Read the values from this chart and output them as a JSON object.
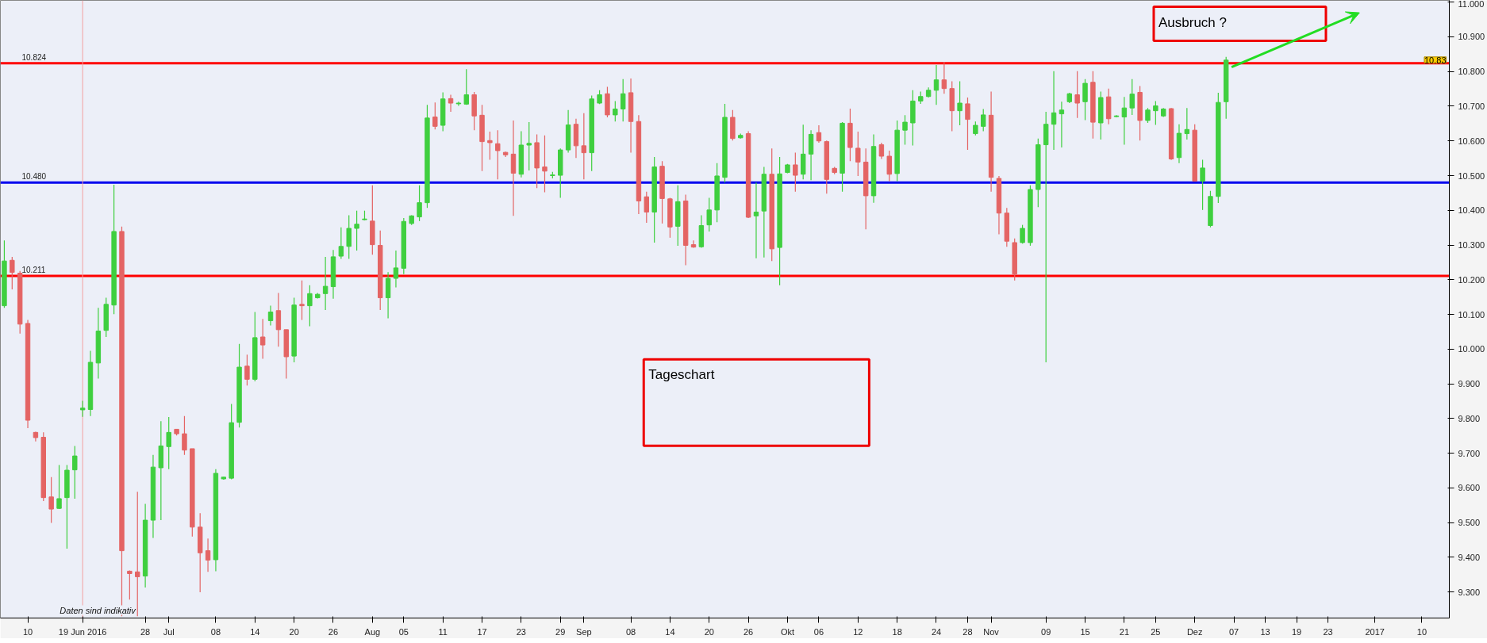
{
  "chart_data": {
    "type": "candlestick",
    "categories": [
      null,
      null,
      null,
      "10",
      null,
      null,
      null,
      null,
      null,
      null,
      "19 Jun 2016",
      null,
      null,
      null,
      null,
      null,
      null,
      null,
      "28",
      null,
      null,
      "Jul",
      null,
      null,
      null,
      null,
      null,
      "08",
      null,
      null,
      null,
      null,
      "14",
      null,
      null,
      null,
      null,
      "20",
      null,
      null,
      null,
      null,
      "26",
      null,
      null,
      null,
      null,
      "Aug",
      null,
      null,
      null,
      "05",
      null,
      null,
      null,
      null,
      "11",
      null,
      null,
      null,
      null,
      "17",
      null,
      null,
      null,
      null,
      "23",
      null,
      null,
      null,
      null,
      "29",
      null,
      null,
      "Sep",
      null,
      null,
      null,
      null,
      null,
      "08",
      null,
      null,
      null,
      null,
      "14",
      null,
      null,
      null,
      null,
      "20",
      null,
      null,
      null,
      null,
      "26",
      null,
      null,
      null,
      null,
      "Okt",
      null,
      null,
      null,
      "06",
      null,
      null,
      null,
      null,
      "12",
      null,
      null,
      null,
      null,
      "18",
      null,
      null,
      null,
      null,
      "24",
      null,
      null,
      null,
      "28",
      null,
      null,
      "Nov",
      null,
      null,
      null,
      null,
      null,
      null,
      "09",
      null,
      null,
      null,
      null,
      "15",
      null,
      null,
      null,
      null,
      "21",
      null,
      null,
      null,
      "25",
      null,
      null,
      null,
      null,
      "Dez",
      null,
      null,
      null,
      null,
      "07",
      null,
      null,
      null,
      "13",
      null,
      null,
      null,
      "19",
      null,
      null,
      null,
      "23",
      null,
      null,
      null,
      null,
      null,
      "2017",
      null,
      null,
      null,
      null,
      null,
      "10",
      null,
      null,
      null
    ],
    "ohlc": [
      [
        10.125,
        10.313,
        10.119,
        10.254
      ],
      [
        10.256,
        10.266,
        10.172,
        10.221
      ],
      [
        10.219,
        10.225,
        10.045,
        10.072
      ],
      [
        10.074,
        10.084,
        9.772,
        9.795
      ],
      [
        9.76,
        9.762,
        9.734,
        9.745
      ],
      [
        9.746,
        9.76,
        9.562,
        9.572
      ],
      [
        9.574,
        9.631,
        9.499,
        9.539
      ],
      [
        9.541,
        9.666,
        9.539,
        9.569
      ],
      [
        9.572,
        9.666,
        9.425,
        9.651
      ],
      [
        9.652,
        9.721,
        9.569,
        9.692
      ],
      [
        9.825,
        9.851,
        9.805,
        9.83
      ],
      [
        9.826,
        9.995,
        9.807,
        9.962
      ],
      [
        9.96,
        10.119,
        9.915,
        10.052
      ],
      [
        10.054,
        10.148,
        10.035,
        10.129
      ],
      [
        10.127,
        10.474,
        10.101,
        10.339
      ],
      [
        10.339,
        10.353,
        9.23,
        9.419
      ],
      [
        9.36,
        9.362,
        9.278,
        9.353
      ],
      [
        9.358,
        9.589,
        9.23,
        9.344
      ],
      [
        9.346,
        9.554,
        9.313,
        9.507
      ],
      [
        9.507,
        9.695,
        9.456,
        9.66
      ],
      [
        9.658,
        9.792,
        9.507,
        9.721
      ],
      [
        9.719,
        9.804,
        9.654,
        9.76
      ],
      [
        9.769,
        9.769,
        9.751,
        9.756
      ],
      [
        9.756,
        9.807,
        9.695,
        9.709
      ],
      [
        9.713,
        9.713,
        9.46,
        9.487
      ],
      [
        9.487,
        9.527,
        9.299,
        9.413
      ],
      [
        9.419,
        9.454,
        9.358,
        9.392
      ],
      [
        9.393,
        9.654,
        9.36,
        9.642
      ],
      [
        9.626,
        9.632,
        9.624,
        9.631
      ],
      [
        9.628,
        9.842,
        9.625,
        9.788
      ],
      [
        9.789,
        10.015,
        9.774,
        9.948
      ],
      [
        9.951,
        9.984,
        9.895,
        9.913
      ],
      [
        9.913,
        10.107,
        9.907,
        10.033
      ],
      [
        10.035,
        10.087,
        9.972,
        10.012
      ],
      [
        10.082,
        10.125,
        10.068,
        10.107
      ],
      [
        10.111,
        10.162,
        10.007,
        10.056
      ],
      [
        10.056,
        10.056,
        9.915,
        9.978
      ],
      [
        9.98,
        10.148,
        9.962,
        10.127
      ],
      [
        10.129,
        10.198,
        10.084,
        10.125
      ],
      [
        10.125,
        10.184,
        10.066,
        10.16
      ],
      [
        10.148,
        10.162,
        10.146,
        10.158
      ],
      [
        10.16,
        10.266,
        10.113,
        10.181
      ],
      [
        10.18,
        10.286,
        10.145,
        10.266
      ],
      [
        10.268,
        10.351,
        10.26,
        10.296
      ],
      [
        10.296,
        10.386,
        10.26,
        10.348
      ],
      [
        10.348,
        10.399,
        10.284,
        10.36
      ],
      [
        10.373,
        10.399,
        10.371,
        10.375
      ],
      [
        10.369,
        10.472,
        10.272,
        10.301
      ],
      [
        10.299,
        10.342,
        10.113,
        10.148
      ],
      [
        10.148,
        10.222,
        10.089,
        10.204
      ],
      [
        10.204,
        10.284,
        10.178,
        10.234
      ],
      [
        10.233,
        10.378,
        10.216,
        10.368
      ],
      [
        10.362,
        10.386,
        10.358,
        10.384
      ],
      [
        10.381,
        10.472,
        10.369,
        10.422
      ],
      [
        10.422,
        10.704,
        10.407,
        10.666
      ],
      [
        10.669,
        10.711,
        10.633,
        10.642
      ],
      [
        10.645,
        10.74,
        10.628,
        10.721
      ],
      [
        10.722,
        10.733,
        10.684,
        10.709
      ],
      [
        10.707,
        10.713,
        10.701,
        10.709
      ],
      [
        10.706,
        10.807,
        10.704,
        10.733
      ],
      [
        10.733,
        10.741,
        10.631,
        10.672
      ],
      [
        10.674,
        10.704,
        10.513,
        10.598
      ],
      [
        10.601,
        10.627,
        10.546,
        10.595
      ],
      [
        10.592,
        10.631,
        10.489,
        10.572
      ],
      [
        10.567,
        10.569,
        10.554,
        10.56
      ],
      [
        10.562,
        10.659,
        10.384,
        10.507
      ],
      [
        10.504,
        10.628,
        10.495,
        10.588
      ],
      [
        10.588,
        10.654,
        10.515,
        10.593
      ],
      [
        10.595,
        10.619,
        10.464,
        10.522
      ],
      [
        10.525,
        10.616,
        10.452,
        10.513
      ],
      [
        10.5,
        10.511,
        10.492,
        10.502
      ],
      [
        10.501,
        10.578,
        10.436,
        10.574
      ],
      [
        10.574,
        10.689,
        10.566,
        10.646
      ],
      [
        10.648,
        10.664,
        10.551,
        10.586
      ],
      [
        10.586,
        10.68,
        10.489,
        10.566
      ],
      [
        10.566,
        10.731,
        10.513,
        10.721
      ],
      [
        10.709,
        10.746,
        10.706,
        10.733
      ],
      [
        10.736,
        10.756,
        10.668,
        10.675
      ],
      [
        10.675,
        10.715,
        10.656,
        10.692
      ],
      [
        10.692,
        10.778,
        10.656,
        10.736
      ],
      [
        10.739,
        10.78,
        10.566,
        10.656
      ],
      [
        10.656,
        10.674,
        10.389,
        10.427
      ],
      [
        10.439,
        10.454,
        10.364,
        10.395
      ],
      [
        10.395,
        10.554,
        10.307,
        10.525
      ],
      [
        10.527,
        10.542,
        10.362,
        10.434
      ],
      [
        10.433,
        10.436,
        10.321,
        10.352
      ],
      [
        10.354,
        10.472,
        10.298,
        10.425
      ],
      [
        10.427,
        10.445,
        10.242,
        10.299
      ],
      [
        10.301,
        10.313,
        10.292,
        10.294
      ],
      [
        10.295,
        10.386,
        10.292,
        10.356
      ],
      [
        10.358,
        10.436,
        10.339,
        10.401
      ],
      [
        10.401,
        10.536,
        10.366,
        10.499
      ],
      [
        10.495,
        10.707,
        10.48,
        10.668
      ],
      [
        10.668,
        10.689,
        10.601,
        10.607
      ],
      [
        10.609,
        10.621,
        10.607,
        10.616
      ],
      [
        10.621,
        10.628,
        10.378,
        10.38
      ],
      [
        10.384,
        10.48,
        10.262,
        10.395
      ],
      [
        10.398,
        10.525,
        10.264,
        10.504
      ],
      [
        10.504,
        10.578,
        10.254,
        10.289
      ],
      [
        10.293,
        10.554,
        10.184,
        10.505
      ],
      [
        10.509,
        10.534,
        10.507,
        10.531
      ],
      [
        10.531,
        10.566,
        10.454,
        10.501
      ],
      [
        10.504,
        10.647,
        10.489,
        10.562
      ],
      [
        10.562,
        10.631,
        10.487,
        10.619
      ],
      [
        10.624,
        10.645,
        10.595,
        10.6
      ],
      [
        10.598,
        10.601,
        10.448,
        10.489
      ],
      [
        10.521,
        10.525,
        10.504,
        10.509
      ],
      [
        10.507,
        10.654,
        10.454,
        10.651
      ],
      [
        10.651,
        10.693,
        10.542,
        10.581
      ],
      [
        10.579,
        10.627,
        10.499,
        10.539
      ],
      [
        10.539,
        10.578,
        10.345,
        10.442
      ],
      [
        10.442,
        10.619,
        10.422,
        10.584
      ],
      [
        10.589,
        10.595,
        10.548,
        10.556
      ],
      [
        10.556,
        10.572,
        10.484,
        10.504
      ],
      [
        10.506,
        10.659,
        10.484,
        10.631
      ],
      [
        10.631,
        10.674,
        10.589,
        10.654
      ],
      [
        10.652,
        10.746,
        10.587,
        10.715
      ],
      [
        10.715,
        10.742,
        10.707,
        10.728
      ],
      [
        10.728,
        10.754,
        10.725,
        10.746
      ],
      [
        10.746,
        10.819,
        10.704,
        10.776
      ],
      [
        10.776,
        10.828,
        10.736,
        10.751
      ],
      [
        10.751,
        10.772,
        10.628,
        10.687
      ],
      [
        10.687,
        10.772,
        10.645,
        10.709
      ],
      [
        10.707,
        10.725,
        10.574,
        10.662
      ],
      [
        10.621,
        10.656,
        10.616,
        10.645
      ],
      [
        10.642,
        10.692,
        10.628,
        10.675
      ],
      [
        10.674,
        10.742,
        10.454,
        10.495
      ],
      [
        10.492,
        10.499,
        10.331,
        10.392
      ],
      [
        10.392,
        10.407,
        10.295,
        10.311
      ],
      [
        10.307,
        10.319,
        10.198,
        10.216
      ],
      [
        10.307,
        10.358,
        10.304,
        10.348
      ],
      [
        10.307,
        10.472,
        10.298,
        10.46
      ],
      [
        10.46,
        10.607,
        10.409,
        10.589
      ],
      [
        10.589,
        10.684,
        9.962,
        10.648
      ],
      [
        10.648,
        10.801,
        10.574,
        10.681
      ],
      [
        10.678,
        10.713,
        10.581,
        10.689
      ],
      [
        10.713,
        10.739,
        10.709,
        10.736
      ],
      [
        10.733,
        10.801,
        10.666,
        10.709
      ],
      [
        10.713,
        10.778,
        10.66,
        10.766
      ],
      [
        10.769,
        10.801,
        10.607,
        10.654
      ],
      [
        10.652,
        10.742,
        10.604,
        10.725
      ],
      [
        10.727,
        10.751,
        10.648,
        10.664
      ],
      [
        10.67,
        10.674,
        10.668,
        10.672
      ],
      [
        10.669,
        10.727,
        10.589,
        10.695
      ],
      [
        10.695,
        10.778,
        10.675,
        10.735
      ],
      [
        10.74,
        10.758,
        10.601,
        10.659
      ],
      [
        10.659,
        10.695,
        10.652,
        10.689
      ],
      [
        10.687,
        10.715,
        10.646,
        10.701
      ],
      [
        10.672,
        10.695,
        10.669,
        10.692
      ],
      [
        10.693,
        10.695,
        10.545,
        10.548
      ],
      [
        10.552,
        10.648,
        10.536,
        10.622
      ],
      [
        10.621,
        10.695,
        10.604,
        10.633
      ],
      [
        10.631,
        10.648,
        10.484,
        10.484
      ],
      [
        10.484,
        10.546,
        10.401,
        10.522
      ],
      [
        10.356,
        10.456,
        10.351,
        10.44
      ],
      [
        10.44,
        10.739,
        10.421,
        10.711
      ],
      [
        10.713,
        10.842,
        10.664,
        10.833
      ],
      null,
      null,
      null,
      null,
      null,
      null,
      null,
      null,
      null,
      null,
      null,
      null,
      null,
      null,
      null,
      null,
      null,
      null,
      null,
      null,
      null,
      null,
      null,
      null,
      null,
      null,
      null,
      null
    ],
    "colors": [
      "#3fcf3f",
      "#e46464",
      "#e46464",
      "#e46464",
      "#e46464",
      "#e46464",
      "#e46464",
      "#3fcf3f",
      "#3fcf3f",
      "#3fcf3f",
      "#3fcf3f",
      "#3fcf3f",
      "#3fcf3f",
      "#3fcf3f",
      "#3fcf3f",
      "#e46464",
      "#e46464",
      "#e46464",
      "#3fcf3f",
      "#3fcf3f",
      "#3fcf3f",
      "#3fcf3f",
      "#e46464",
      "#e46464",
      "#e46464",
      "#e46464",
      "#e46464",
      "#3fcf3f",
      "#3fcf3f",
      "#3fcf3f",
      "#3fcf3f",
      "#e46464",
      "#3fcf3f",
      "#e46464",
      "#3fcf3f",
      "#e46464",
      "#e46464",
      "#3fcf3f",
      "#e46464",
      "#3fcf3f",
      "#3fcf3f",
      "#3fcf3f",
      "#3fcf3f",
      "#3fcf3f",
      "#3fcf3f",
      "#3fcf3f",
      "#3fcf3f",
      "#e46464",
      "#e46464",
      "#3fcf3f",
      "#3fcf3f",
      "#3fcf3f",
      "#3fcf3f",
      "#3fcf3f",
      "#3fcf3f",
      "#e46464",
      "#3fcf3f",
      "#e46464",
      "#3fcf3f",
      "#3fcf3f",
      "#e46464",
      "#e46464",
      "#e46464",
      "#e46464",
      "#e46464",
      "#e46464",
      "#3fcf3f",
      "#3fcf3f",
      "#e46464",
      "#e46464",
      "#3fcf3f",
      "#3fcf3f",
      "#3fcf3f",
      "#e46464",
      "#e46464",
      "#3fcf3f",
      "#3fcf3f",
      "#e46464",
      "#3fcf3f",
      "#3fcf3f",
      "#e46464",
      "#e46464",
      "#e46464",
      "#3fcf3f",
      "#e46464",
      "#e46464",
      "#3fcf3f",
      "#e46464",
      "#e46464",
      "#3fcf3f",
      "#3fcf3f",
      "#3fcf3f",
      "#3fcf3f",
      "#e46464",
      "#3fcf3f",
      "#e46464",
      "#3fcf3f",
      "#3fcf3f",
      "#e46464",
      "#3fcf3f",
      "#3fcf3f",
      "#e46464",
      "#3fcf3f",
      "#3fcf3f",
      "#e46464",
      "#e46464",
      "#e46464",
      "#3fcf3f",
      "#e46464",
      "#e46464",
      "#e46464",
      "#3fcf3f",
      "#e46464",
      "#e46464",
      "#3fcf3f",
      "#3fcf3f",
      "#3fcf3f",
      "#3fcf3f",
      "#3fcf3f",
      "#3fcf3f",
      "#e46464",
      "#e46464",
      "#3fcf3f",
      "#e46464",
      "#3fcf3f",
      "#3fcf3f",
      "#e46464",
      "#e46464",
      "#e46464",
      "#e46464",
      "#3fcf3f",
      "#3fcf3f",
      "#3fcf3f",
      "#3fcf3f",
      "#3fcf3f",
      "#3fcf3f",
      "#3fcf3f",
      "#e46464",
      "#3fcf3f",
      "#e46464",
      "#3fcf3f",
      "#e46464",
      "#3fcf3f",
      "#3fcf3f",
      "#3fcf3f",
      "#e46464",
      "#3fcf3f",
      "#3fcf3f",
      "#3fcf3f",
      "#e46464",
      "#3fcf3f",
      "#3fcf3f",
      "#e46464",
      "#3fcf3f",
      "#3fcf3f",
      "#3fcf3f",
      "#3fcf3f",
      null,
      null,
      null,
      null,
      null,
      null,
      null,
      null,
      null,
      null,
      null,
      null,
      null,
      null,
      null,
      null,
      null,
      null,
      null,
      null,
      null,
      null,
      null,
      null,
      null,
      null,
      null,
      null
    ],
    "ylim": [
      9.225,
      11.005
    ],
    "yticks": [
      {
        "value": 9.3,
        "label": "9.300"
      },
      {
        "value": 9.4,
        "label": "9.400"
      },
      {
        "value": 9.5,
        "label": "9.500"
      },
      {
        "value": 9.6,
        "label": "9.600"
      },
      {
        "value": 9.7,
        "label": "9.700"
      },
      {
        "value": 9.8,
        "label": "9.800"
      },
      {
        "value": 9.9,
        "label": "9.900"
      },
      {
        "value": 10.0,
        "label": "10.000"
      },
      {
        "value": 10.1,
        "label": "10.100"
      },
      {
        "value": 10.2,
        "label": "10.200"
      },
      {
        "value": 10.3,
        "label": "10.300"
      },
      {
        "value": 10.4,
        "label": "10.400"
      },
      {
        "value": 10.5,
        "label": "10.500"
      },
      {
        "value": 10.6,
        "label": "10.600"
      },
      {
        "value": 10.7,
        "label": "10.700"
      },
      {
        "value": 10.8,
        "label": "10.800"
      },
      {
        "value": 10.9,
        "label": "10.900"
      },
      {
        "value": 11.0,
        "label": "11.000"
      }
    ],
    "ref_lines": [
      {
        "axis": "y",
        "value": 10.824,
        "label": "10.824",
        "color": "#ff0000"
      },
      {
        "axis": "y",
        "value": 10.48,
        "label": "10.480",
        "color": "#0000ee"
      },
      {
        "axis": "y",
        "value": 10.211,
        "label": "10.211",
        "color": "#ff0000"
      },
      {
        "axis": "x",
        "value": "19 Jun 2016",
        "color": "#f4a0a0"
      }
    ],
    "annotations": [
      "Ausbruch ?",
      "Tageschart",
      "Daten sind indikativ",
      "10.83"
    ],
    "grid": false
  }
}
